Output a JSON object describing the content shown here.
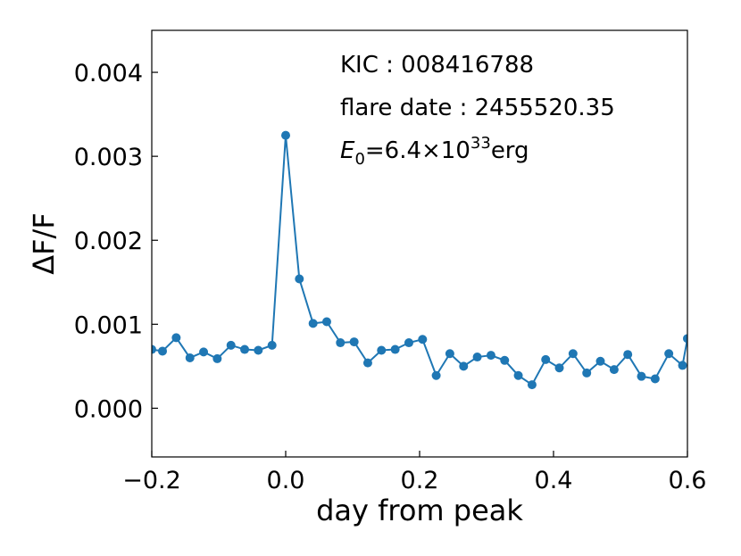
{
  "chart_data": {
    "type": "line",
    "xlabel": "day from peak",
    "ylabel": "ΔF/F",
    "xlim": [
      -0.2,
      0.6
    ],
    "ylim": [
      -0.00058,
      0.0045
    ],
    "xticks": [
      {
        "value": -0.2,
        "label": "−0.2"
      },
      {
        "value": 0.0,
        "label": "0.0"
      },
      {
        "value": 0.2,
        "label": "0.2"
      },
      {
        "value": 0.4,
        "label": "0.4"
      },
      {
        "value": 0.6,
        "label": "0.6"
      }
    ],
    "yticks": [
      {
        "value": 0.0,
        "label": "0.000"
      },
      {
        "value": 0.001,
        "label": "0.001"
      },
      {
        "value": 0.002,
        "label": "0.002"
      },
      {
        "value": 0.003,
        "label": "0.003"
      },
      {
        "value": 0.004,
        "label": "0.004"
      }
    ],
    "annotations": {
      "kic": "KIC : 008416788",
      "flare_date": "flare date : 2455520.35",
      "energy_symbol": "E",
      "energy_sub": "0",
      "energy_eq": "=6.4×10",
      "energy_exp": "33",
      "energy_unit": "erg"
    },
    "series": [
      {
        "color": "#1f77b4",
        "x": [
          -0.2,
          -0.184,
          -0.1635,
          -0.143,
          -0.1226,
          -0.1022,
          -0.0817,
          -0.0613,
          -0.0409,
          -0.0204,
          0.0,
          0.0204,
          0.0409,
          0.0613,
          0.0817,
          0.1022,
          0.1226,
          0.143,
          0.1635,
          0.184,
          0.2044,
          0.2248,
          0.2452,
          0.2657,
          0.2861,
          0.3066,
          0.327,
          0.3474,
          0.3679,
          0.3883,
          0.4087,
          0.4291,
          0.4496,
          0.47,
          0.4905,
          0.5109,
          0.5313,
          0.5518,
          0.5722,
          0.5927,
          0.6
        ],
        "y": [
          0.0007,
          0.00068,
          0.00084,
          0.0006,
          0.00067,
          0.00059,
          0.00075,
          0.0007,
          0.00069,
          0.00075,
          0.00325,
          0.00154,
          0.00101,
          0.00103,
          0.00078,
          0.00079,
          0.00054,
          0.00069,
          0.0007,
          0.00078,
          0.00082,
          0.00039,
          0.00065,
          0.0005,
          0.00061,
          0.00063,
          0.00057,
          0.00039,
          0.00028,
          0.00058,
          0.00048,
          0.00065,
          0.00042,
          0.00056,
          0.00046,
          0.00064,
          0.00038,
          0.00035,
          0.00065,
          0.00051,
          0.00083
        ]
      }
    ]
  }
}
